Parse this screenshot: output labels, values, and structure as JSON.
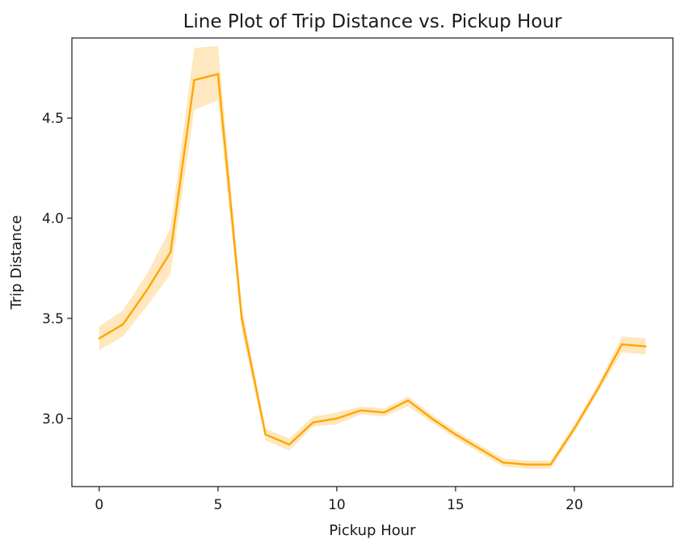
{
  "chart_data": {
    "type": "line",
    "title": "Line Plot of Trip Distance vs. Pickup Hour",
    "xlabel": "Pickup Hour",
    "ylabel": "Trip Distance",
    "xlim": [
      -1.15,
      24.15
    ],
    "ylim": [
      2.66,
      4.9
    ],
    "x_ticks": [
      0,
      5,
      10,
      15,
      20
    ],
    "x_tick_labels": [
      "0",
      "5",
      "10",
      "15",
      "20"
    ],
    "y_ticks": [
      3.0,
      3.5,
      4.0,
      4.5
    ],
    "y_tick_labels": [
      "3.0",
      "3.5",
      "4.0",
      "4.5"
    ],
    "grid": false,
    "series": [
      {
        "color": "#FFA500",
        "band_color": "#FFA500",
        "band_opacity": 0.25,
        "x": [
          0,
          1,
          2,
          3,
          4,
          5,
          6,
          7,
          8,
          9,
          10,
          11,
          12,
          13,
          14,
          15,
          16,
          17,
          18,
          19,
          20,
          21,
          22,
          23
        ],
        "y": [
          3.4,
          3.47,
          3.64,
          3.83,
          4.69,
          4.72,
          3.5,
          2.92,
          2.87,
          2.98,
          3.0,
          3.04,
          3.03,
          3.09,
          3.0,
          2.92,
          2.85,
          2.78,
          2.77,
          2.77,
          2.95,
          3.15,
          3.37,
          3.36
        ],
        "ci_low": [
          3.34,
          3.41,
          3.56,
          3.72,
          4.54,
          4.59,
          3.44,
          2.89,
          2.84,
          2.96,
          2.97,
          3.02,
          3.01,
          3.06,
          2.98,
          2.9,
          2.83,
          2.76,
          2.75,
          2.75,
          2.93,
          3.13,
          3.33,
          3.32
        ],
        "ci_high": [
          3.46,
          3.54,
          3.72,
          3.95,
          4.85,
          4.86,
          3.56,
          2.95,
          2.9,
          3.01,
          3.03,
          3.06,
          3.05,
          3.11,
          3.02,
          2.94,
          2.87,
          2.8,
          2.79,
          2.79,
          2.97,
          3.17,
          3.41,
          3.4
        ]
      }
    ]
  }
}
